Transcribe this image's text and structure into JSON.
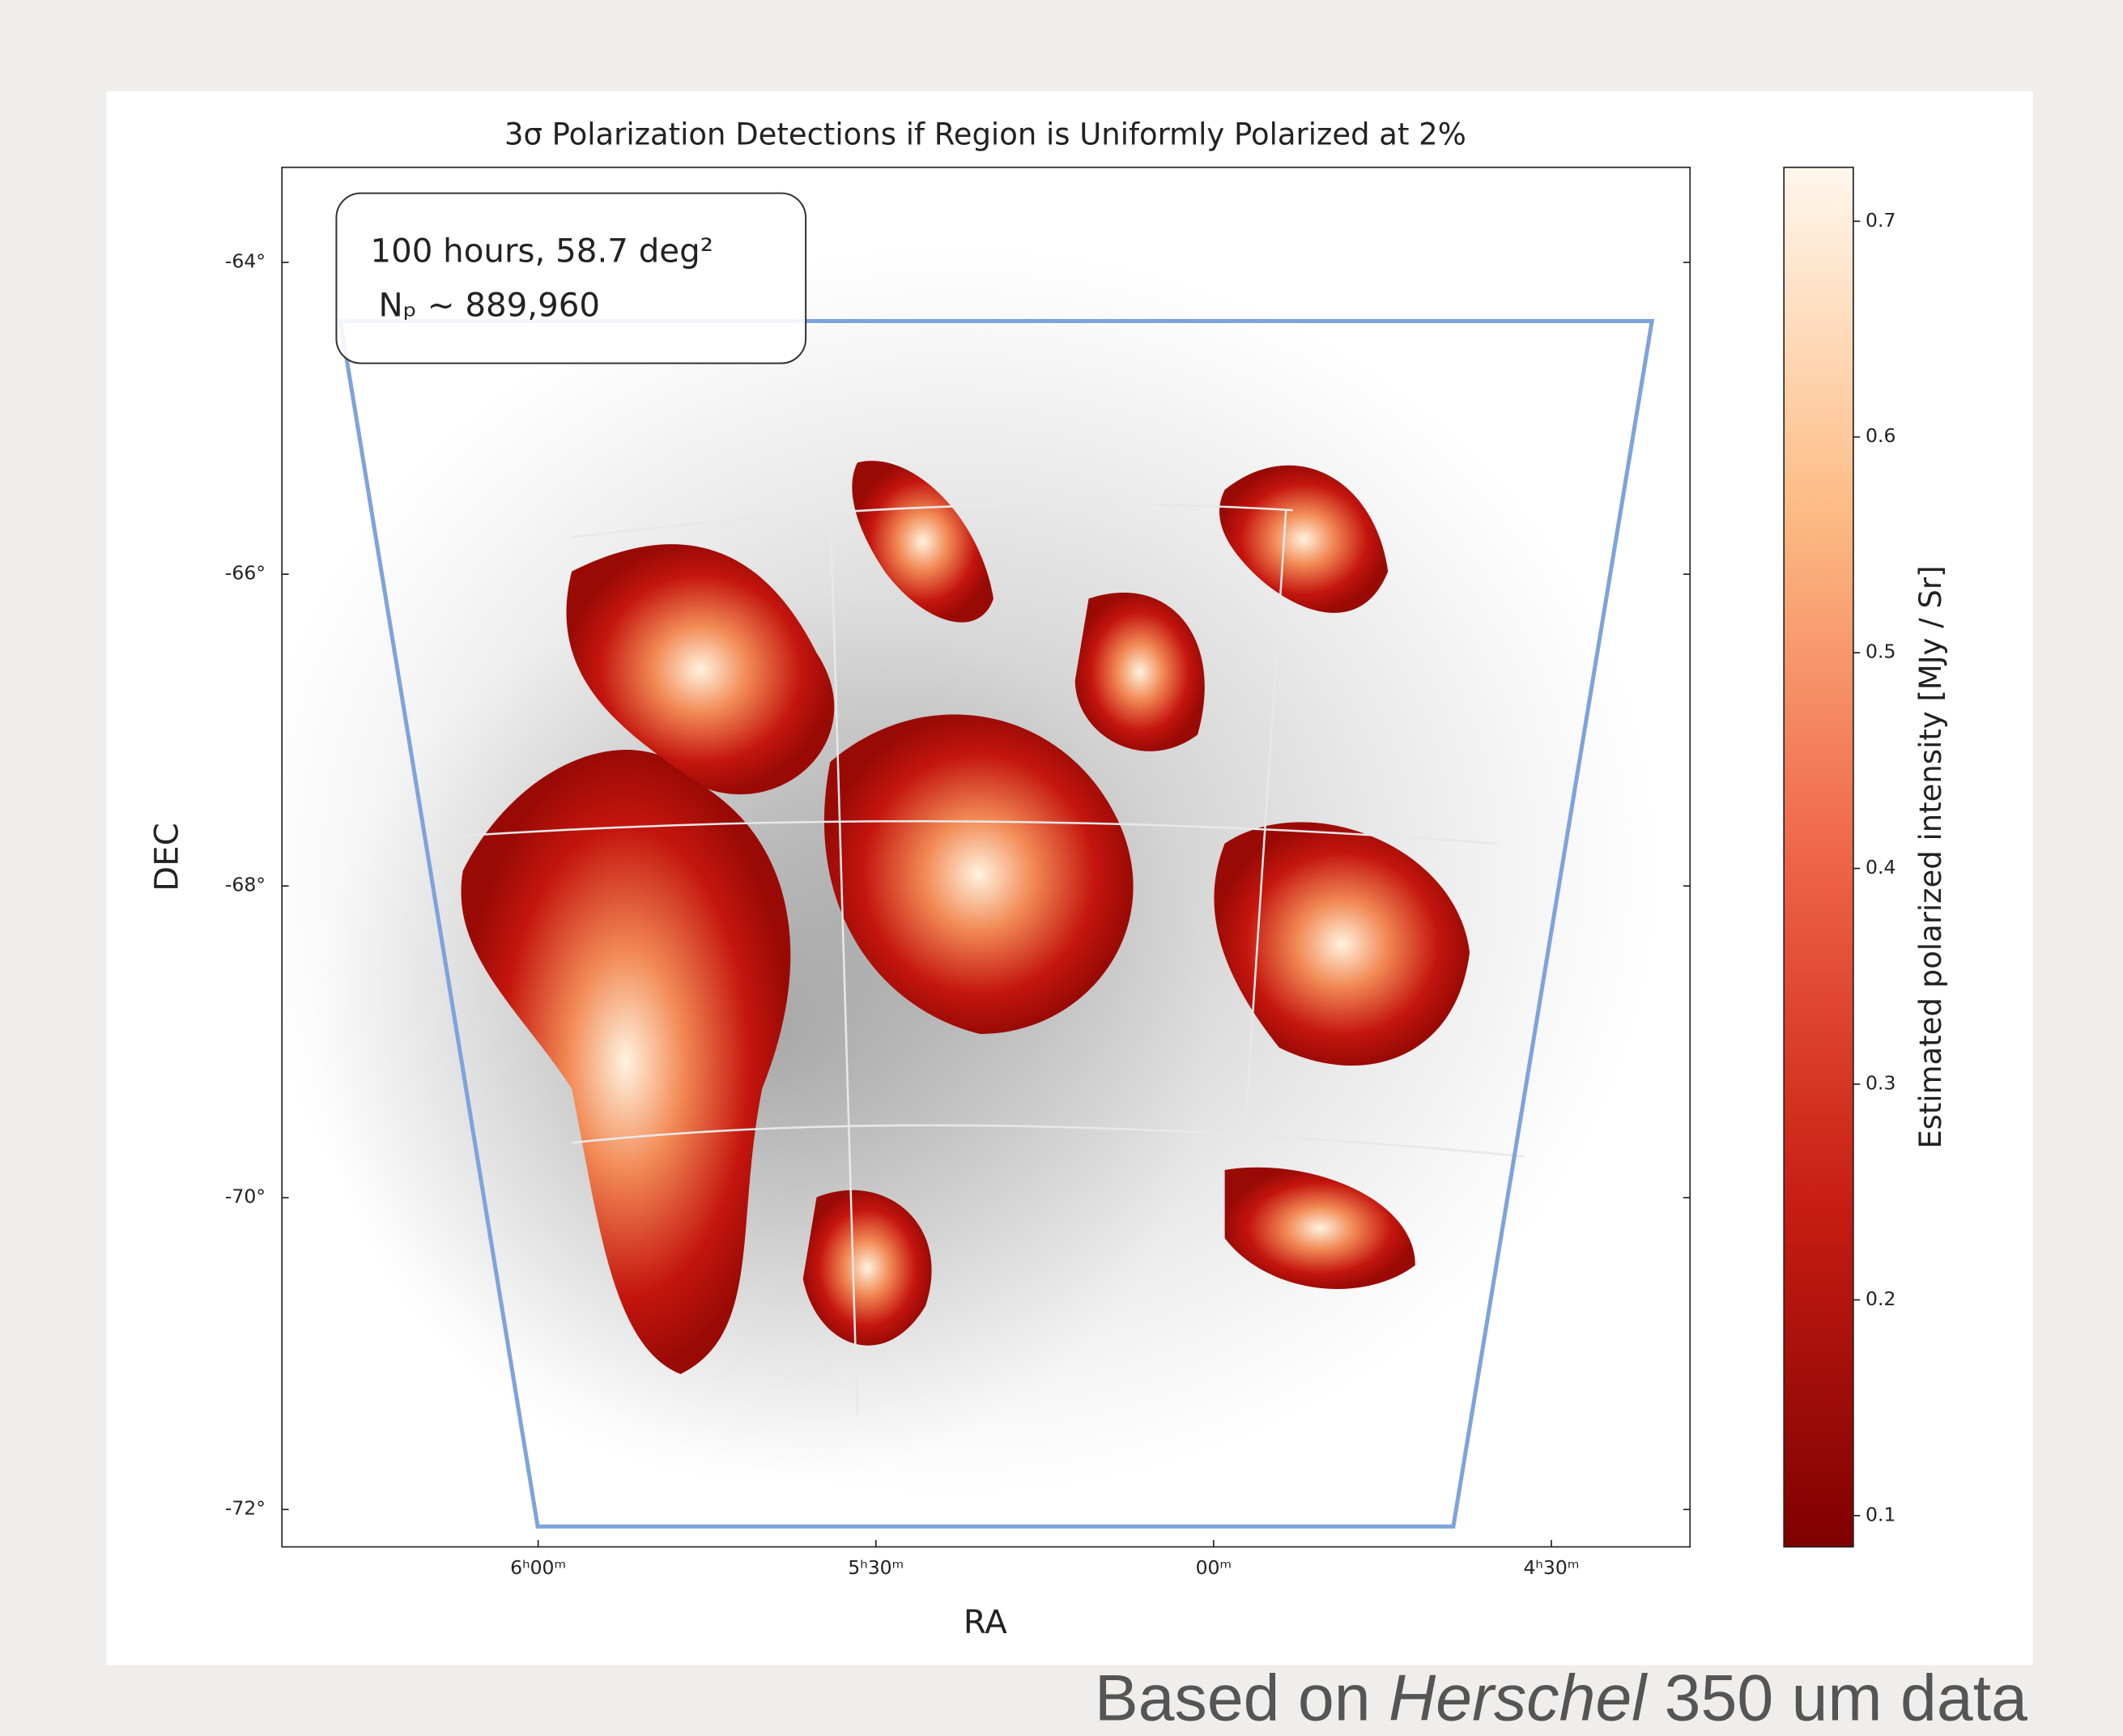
{
  "chart_data": {
    "type": "image",
    "title": "3σ Polarization Detections if Region is Uniformly Polarized at 2%",
    "annotation": [
      "100 hours, 58.7 deg²",
      "Nₚ ~ 889,960"
    ],
    "xlabel": "RA",
    "ylabel": "DEC",
    "xlim": [
      95.69,
      64.42
    ],
    "xticks": [
      {
        "value": 90,
        "label": "6ʰ00ᵐ"
      },
      {
        "value": 82.5,
        "label": "5ʰ30ᵐ"
      },
      {
        "value": 75,
        "label": "00ᵐ"
      },
      {
        "value": 67.5,
        "label": "4ʰ30ᵐ"
      }
    ],
    "ylim": [
      -72.24,
      -63.39
    ],
    "yticks": [
      {
        "value": -64,
        "label": "-64°"
      },
      {
        "value": -66,
        "label": "-66°"
      },
      {
        "value": -68,
        "label": "-68°"
      },
      {
        "value": -70,
        "label": "-70°"
      },
      {
        "value": -72,
        "label": "-72°"
      }
    ],
    "colorbar_label": "Estimated polarized intensity [MJy / Sr]",
    "clim": [
      0.0855,
      0.725
    ],
    "cticks": [
      0.1,
      0.2,
      0.3,
      0.4,
      0.5,
      0.6,
      0.7
    ]
  },
  "caption": [
    "Based on ",
    "Herschel",
    " 350 um data"
  ]
}
